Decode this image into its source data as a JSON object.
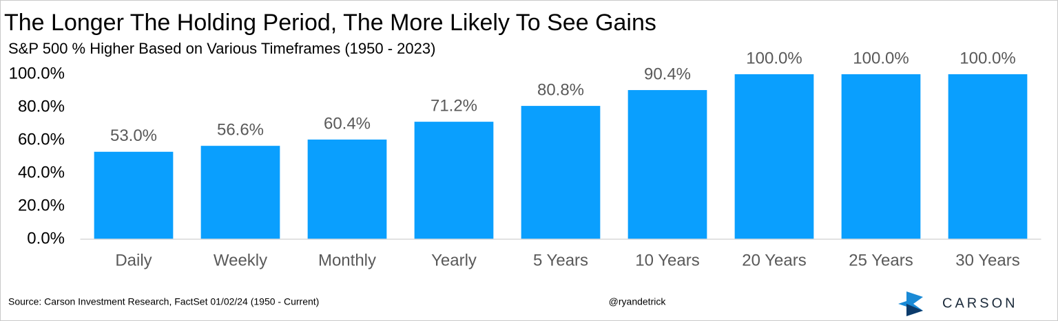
{
  "chart_data": {
    "type": "bar",
    "title": "The Longer The Holding Period, The More Likely To See Gains",
    "subtitle": "S&P 500 % Higher Based on Various Timeframes (1950 - 2023)",
    "categories": [
      "Daily",
      "Weekly",
      "Monthly",
      "Yearly",
      "5 Years",
      "10 Years",
      "20 Years",
      "25 Years",
      "30 Years"
    ],
    "values": [
      53.0,
      56.6,
      60.4,
      71.2,
      80.8,
      90.4,
      100.0,
      100.0,
      100.0
    ],
    "value_labels": [
      "53.0%",
      "56.6%",
      "60.4%",
      "71.2%",
      "80.8%",
      "90.4%",
      "100.0%",
      "100.0%",
      "100.0%"
    ],
    "color": "#0a9ffe",
    "ylim": [
      0,
      100
    ],
    "yticks": [
      {
        "value": 0,
        "label": "0.0%"
      },
      {
        "value": 20,
        "label": "20.0%"
      },
      {
        "value": 40,
        "label": "40.0%"
      },
      {
        "value": 60,
        "label": "60.0%"
      },
      {
        "value": 80,
        "label": "80.0%"
      },
      {
        "value": 100,
        "label": "100.0%"
      }
    ],
    "grid": false,
    "source": "Source: Carson Investment Research, FactSet 01/02/24 (1950 - Current)",
    "handle": "@ryandetrick",
    "logo": "CARSON"
  }
}
